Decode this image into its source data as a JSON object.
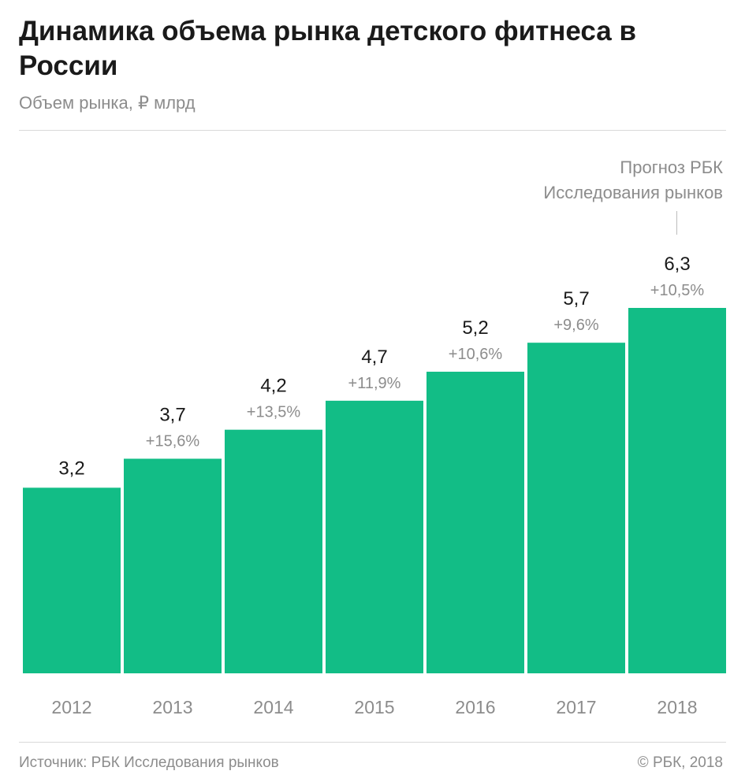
{
  "header": {
    "title": "Динамика объема рынка детского фитнеса в России",
    "subtitle": "Объем рынка, ₽ млрд"
  },
  "annotation": {
    "line1": "Прогноз РБК",
    "line2": "Исследования рынков"
  },
  "footer": {
    "source": "Источник: РБК Исследования рынков",
    "copyright": "© РБК, 2018"
  },
  "colors": {
    "bar": "#12bd86",
    "value_label": "#1a1a1a",
    "growth_label": "#8c8c8c",
    "tick_label": "#8c8c8c"
  },
  "chart_data": {
    "type": "bar",
    "categories": [
      "2012",
      "2013",
      "2014",
      "2015",
      "2016",
      "2017",
      "2018"
    ],
    "values": [
      3.2,
      3.7,
      4.2,
      4.7,
      5.2,
      5.7,
      6.3
    ],
    "value_labels": [
      "3,2",
      "3,7",
      "4,2",
      "4,7",
      "5,2",
      "5,7",
      "6,3"
    ],
    "growth_labels": [
      "",
      "+15,6%",
      "+13,5%",
      "+11,9%",
      "+10,6%",
      "+9,6%",
      "+10,5%"
    ],
    "title": "Динамика объема рынка детского фитнеса в России",
    "ylabel": "Объем рынка, ₽ млрд",
    "xlabel": "",
    "ylim": [
      0,
      6.3
    ],
    "grid": false,
    "legend": "none"
  }
}
